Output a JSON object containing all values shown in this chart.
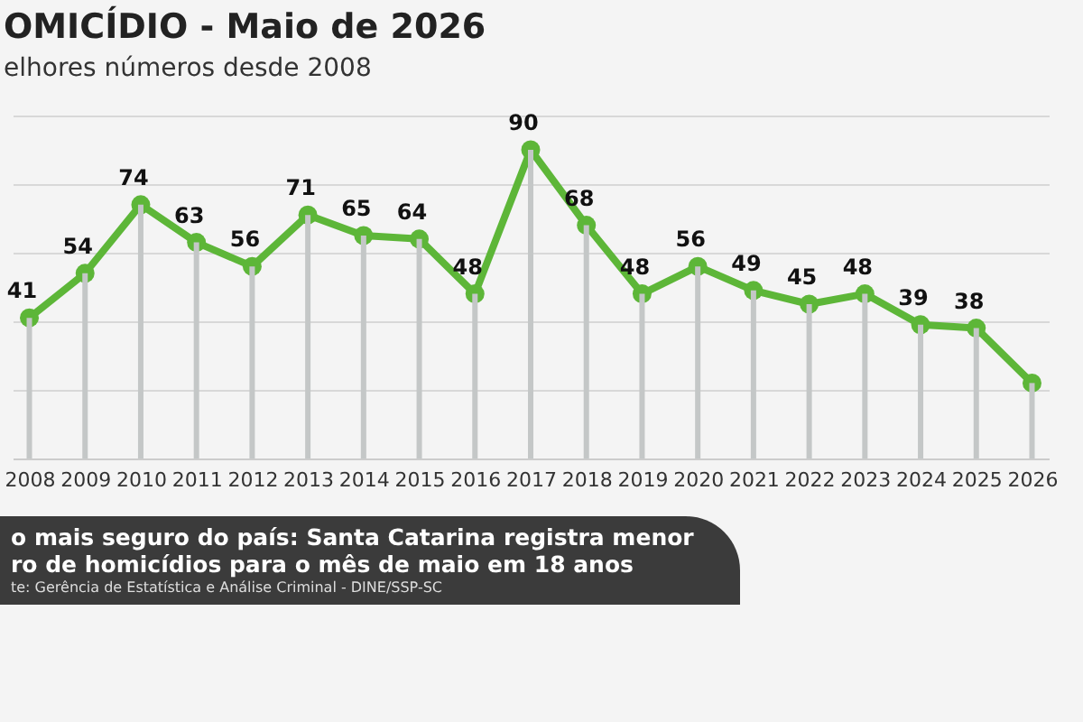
{
  "chart_data": {
    "type": "line",
    "title": "OMICÍDIO - Maio de 2026",
    "subtitle": "elhores números desde 2008",
    "categories": [
      "2008",
      "2009",
      "2010",
      "2011",
      "2012",
      "2013",
      "2014",
      "2015",
      "2016",
      "2017",
      "2018",
      "2019",
      "2020",
      "2021",
      "2022",
      "2023",
      "2024",
      "2025",
      "2026"
    ],
    "series": [
      {
        "type": "bar",
        "color": "#c4c7c7",
        "values": [
          41,
          54,
          74,
          63,
          56,
          71,
          65,
          64,
          48,
          90,
          68,
          48,
          56,
          49,
          45,
          48,
          39,
          38,
          22
        ]
      },
      {
        "color": "#5db638",
        "values": [
          41,
          54,
          74,
          63,
          56,
          71,
          65,
          64,
          48,
          90,
          68,
          48,
          56,
          49,
          45,
          48,
          39,
          38,
          22
        ],
        "value_labels": [
          "41",
          "54",
          "74",
          "63",
          "56",
          "71",
          "65",
          "64",
          "48",
          "90",
          "68",
          "48",
          "56",
          "49",
          "45",
          "48",
          "39",
          "38",
          null
        ]
      }
    ],
    "ylim": [
      0,
      100
    ],
    "yticks": [
      {
        "value": 0,
        "label": null
      },
      {
        "value": 20,
        "label": null
      },
      {
        "value": 40,
        "label": null
      },
      {
        "value": 60,
        "label": null
      },
      {
        "value": 80,
        "label": null
      },
      {
        "value": 100,
        "label": null
      }
    ],
    "grid": "y",
    "marker": "circle",
    "line_style": "solid",
    "tick_labels": "x",
    "annotations": [
      "o mais seguro do país: Santa Catarina registra menor",
      "ro de homicídios para o mês de maio em 18 anos",
      "te: Gerência de Estatística e Análise Criminal - DINE/SSP-SC"
    ]
  }
}
